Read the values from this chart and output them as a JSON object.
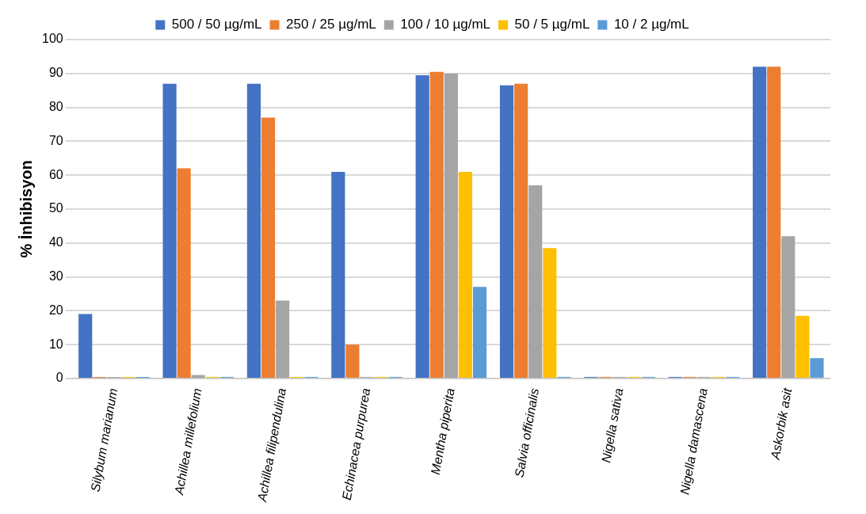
{
  "chart_data": {
    "type": "bar",
    "ylabel": "% İnhibisyon",
    "categories": [
      "Silybum marianum",
      "Achillea millefolium",
      "Achillea filipendulina",
      "Echinacea purpurea",
      "Mentha piperita",
      "Salvia officinalis",
      "Nigella sativa",
      "Nigella damascena",
      "Askorbik asit"
    ],
    "series": [
      {
        "name": "500 / 50 µg/mL",
        "color": "#4472c4",
        "values": [
          19,
          87,
          87,
          61,
          89.5,
          86.5,
          0,
          0,
          92
        ]
      },
      {
        "name": "250 / 25 µg/mL",
        "color": "#ed7d31",
        "values": [
          0,
          62,
          77,
          10,
          90.5,
          87,
          0,
          0,
          92
        ]
      },
      {
        "name": "100 / 10 µg/mL",
        "color": "#a5a5a5",
        "values": [
          0,
          1,
          23,
          0,
          90,
          57,
          0,
          0,
          42
        ]
      },
      {
        "name": "50 / 5 µg/mL",
        "color": "#ffc000",
        "values": [
          0,
          0,
          0,
          0,
          61,
          38.5,
          0,
          0,
          18.5
        ]
      },
      {
        "name": "10 / 2 µg/mL",
        "color": "#5b9bd5",
        "values": [
          0,
          0,
          0,
          0,
          27,
          0,
          0,
          0,
          6
        ]
      }
    ],
    "ylim": [
      0,
      100
    ],
    "yticks": [
      0,
      10,
      20,
      30,
      40,
      50,
      60,
      70,
      80,
      90,
      100
    ],
    "grid": "y",
    "legend": "top"
  }
}
